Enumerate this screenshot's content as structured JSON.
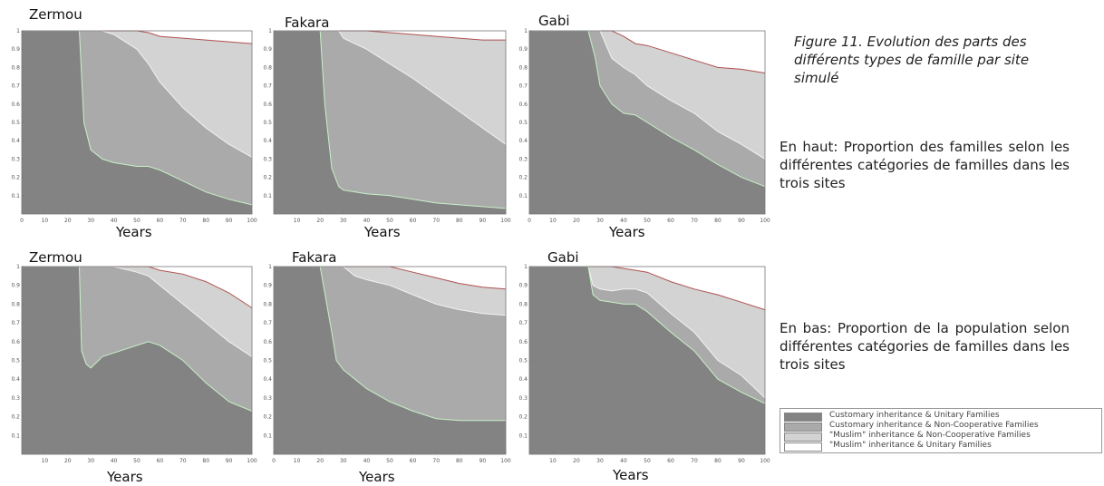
{
  "caption": "Figure 11. Evolution des parts des différents types de famille par site simulé",
  "note_top": "En haut: Proportion des familles selon les différentes catégories de familles dans les trois sites",
  "note_bottom": "En bas: Proportion de la population selon différentes catégories de familles dans les trois sites",
  "legend": [
    {
      "label": "Customary inheritance & Unitary Families",
      "color": "#838383"
    },
    {
      "label": "Customary inheritance & Non-Cooperative Families",
      "color": "#aaaaaa"
    },
    {
      "label": "\"Muslim\" inheritance & Non-Cooperative Families",
      "color": "#d3d3d3"
    },
    {
      "label": "\"Muslim\" inheritance & Unitary Families",
      "color": "#ffffff"
    }
  ],
  "chart_data": [
    {
      "type": "area",
      "title": "Zermou",
      "xlabel": "Years",
      "xlim": [
        0,
        100
      ],
      "ylim": [
        0,
        1
      ],
      "xticks": [
        0,
        10,
        20,
        30,
        40,
        50,
        60,
        70,
        80,
        90,
        100
      ],
      "yticks": [
        0.1,
        0.2,
        0.3,
        0.4,
        0.5,
        0.6,
        0.7,
        0.8,
        0.9,
        1
      ],
      "x": [
        0,
        10,
        20,
        25,
        27,
        30,
        35,
        40,
        50,
        55,
        60,
        70,
        80,
        90,
        100
      ],
      "series": [
        {
          "values": [
            1,
            1,
            1,
            1,
            0.5,
            0.35,
            0.3,
            0.28,
            0.26,
            0.26,
            0.24,
            0.18,
            0.12,
            0.08,
            0.05
          ]
        },
        {
          "values": [
            1,
            1,
            1,
            1,
            1,
            1,
            1,
            0.98,
            0.9,
            0.82,
            0.72,
            0.58,
            0.47,
            0.38,
            0.31
          ]
        },
        {
          "values": [
            1,
            1,
            1,
            1,
            1,
            1,
            1,
            1,
            1,
            0.99,
            0.97,
            0.96,
            0.95,
            0.94,
            0.93
          ]
        }
      ]
    },
    {
      "type": "area",
      "title": "Fakara",
      "xlabel": "Years",
      "xlim": [
        0,
        100
      ],
      "ylim": [
        0,
        1
      ],
      "xticks": [
        10,
        20,
        30,
        40,
        50,
        60,
        70,
        80,
        90,
        100
      ],
      "yticks": [
        0.1,
        0.2,
        0.3,
        0.4,
        0.5,
        0.6,
        0.7,
        0.8,
        0.9,
        1
      ],
      "x": [
        0,
        10,
        20,
        22,
        25,
        28,
        30,
        40,
        50,
        60,
        70,
        80,
        90,
        100
      ],
      "series": [
        {
          "values": [
            1,
            1,
            1,
            0.6,
            0.25,
            0.15,
            0.13,
            0.11,
            0.1,
            0.08,
            0.06,
            0.05,
            0.04,
            0.03
          ]
        },
        {
          "values": [
            1,
            1,
            1,
            1,
            1,
            1,
            0.96,
            0.9,
            0.82,
            0.74,
            0.65,
            0.56,
            0.47,
            0.38
          ]
        },
        {
          "values": [
            1,
            1,
            1,
            1,
            1,
            1,
            1,
            1,
            0.99,
            0.98,
            0.97,
            0.96,
            0.95,
            0.95
          ]
        }
      ]
    },
    {
      "type": "area",
      "title": "Gabi",
      "xlabel": "Years",
      "xlim": [
        0,
        100
      ],
      "ylim": [
        0,
        1
      ],
      "xticks": [
        0,
        10,
        20,
        30,
        40,
        50,
        60,
        70,
        80,
        90,
        100
      ],
      "yticks": [
        0.1,
        0.2,
        0.3,
        0.4,
        0.5,
        0.6,
        0.7,
        0.8,
        0.9,
        1
      ],
      "x": [
        0,
        10,
        20,
        25,
        28,
        30,
        35,
        40,
        45,
        50,
        60,
        70,
        80,
        90,
        100
      ],
      "series": [
        {
          "values": [
            1,
            1,
            1,
            1,
            0.85,
            0.7,
            0.6,
            0.55,
            0.54,
            0.5,
            0.42,
            0.35,
            0.27,
            0.2,
            0.15
          ]
        },
        {
          "values": [
            1,
            1,
            1,
            1,
            1,
            1,
            0.85,
            0.8,
            0.76,
            0.7,
            0.62,
            0.55,
            0.45,
            0.38,
            0.3
          ]
        },
        {
          "values": [
            1,
            1,
            1,
            1,
            1,
            1,
            1,
            0.97,
            0.93,
            0.92,
            0.88,
            0.84,
            0.8,
            0.79,
            0.77
          ]
        }
      ]
    },
    {
      "type": "area",
      "title": "Zermou",
      "xlabel": "Years",
      "xlim": [
        0,
        100
      ],
      "ylim": [
        0,
        1
      ],
      "xticks": [
        10,
        20,
        30,
        40,
        50,
        60,
        70,
        80,
        90,
        100
      ],
      "yticks": [
        0.1,
        0.2,
        0.3,
        0.4,
        0.5,
        0.6,
        0.7,
        0.8,
        0.9,
        1
      ],
      "x": [
        0,
        10,
        20,
        25,
        26,
        28,
        30,
        35,
        40,
        50,
        55,
        60,
        70,
        80,
        90,
        100
      ],
      "series": [
        {
          "values": [
            1,
            1,
            1,
            1,
            0.55,
            0.48,
            0.46,
            0.52,
            0.54,
            0.58,
            0.6,
            0.58,
            0.5,
            0.38,
            0.28,
            0.23
          ]
        },
        {
          "values": [
            1,
            1,
            1,
            1,
            1,
            1,
            1,
            1,
            1,
            0.97,
            0.95,
            0.9,
            0.8,
            0.7,
            0.6,
            0.52
          ]
        },
        {
          "values": [
            1,
            1,
            1,
            1,
            1,
            1,
            1,
            1,
            1,
            1,
            1,
            0.98,
            0.96,
            0.92,
            0.86,
            0.78
          ]
        }
      ]
    },
    {
      "type": "area",
      "title": "Fakara",
      "xlabel": "Years",
      "xlim": [
        0,
        100
      ],
      "ylim": [
        0,
        1
      ],
      "xticks": [
        0,
        10,
        20,
        30,
        40,
        50,
        60,
        70,
        80,
        90,
        100
      ],
      "yticks": [
        0.1,
        0.2,
        0.3,
        0.4,
        0.5,
        0.6,
        0.7,
        0.8,
        0.9,
        1
      ],
      "x": [
        0,
        10,
        20,
        25,
        27,
        30,
        35,
        40,
        50,
        60,
        70,
        80,
        90,
        100
      ],
      "series": [
        {
          "values": [
            1,
            1,
            1,
            0.65,
            0.5,
            0.45,
            0.4,
            0.35,
            0.28,
            0.23,
            0.19,
            0.18,
            0.18,
            0.18
          ]
        },
        {
          "values": [
            1,
            1,
            1,
            1,
            1,
            1,
            0.95,
            0.93,
            0.9,
            0.85,
            0.8,
            0.77,
            0.75,
            0.74
          ]
        },
        {
          "values": [
            1,
            1,
            1,
            1,
            1,
            1,
            1,
            1,
            1,
            0.97,
            0.94,
            0.91,
            0.89,
            0.88
          ]
        }
      ]
    },
    {
      "type": "area",
      "title": "Gabi",
      "xlabel": "Years",
      "xlim": [
        0,
        100
      ],
      "ylim": [
        0,
        1
      ],
      "xticks": [
        10,
        20,
        30,
        40,
        50,
        60,
        70,
        80,
        90,
        100
      ],
      "yticks": [
        0.1,
        0.2,
        0.3,
        0.4,
        0.5,
        0.6,
        0.7,
        0.8,
        0.9,
        1
      ],
      "x": [
        0,
        10,
        20,
        25,
        27,
        30,
        35,
        40,
        45,
        50,
        60,
        70,
        80,
        90,
        100
      ],
      "series": [
        {
          "values": [
            1,
            1,
            1,
            1,
            0.85,
            0.82,
            0.81,
            0.8,
            0.8,
            0.76,
            0.65,
            0.55,
            0.4,
            0.33,
            0.27
          ]
        },
        {
          "values": [
            1,
            1,
            1,
            1,
            0.9,
            0.88,
            0.87,
            0.88,
            0.88,
            0.86,
            0.75,
            0.65,
            0.5,
            0.42,
            0.3
          ]
        },
        {
          "values": [
            1,
            1,
            1,
            1,
            1,
            1,
            1,
            0.99,
            0.98,
            0.97,
            0.92,
            0.88,
            0.85,
            0.81,
            0.77
          ]
        }
      ]
    }
  ]
}
